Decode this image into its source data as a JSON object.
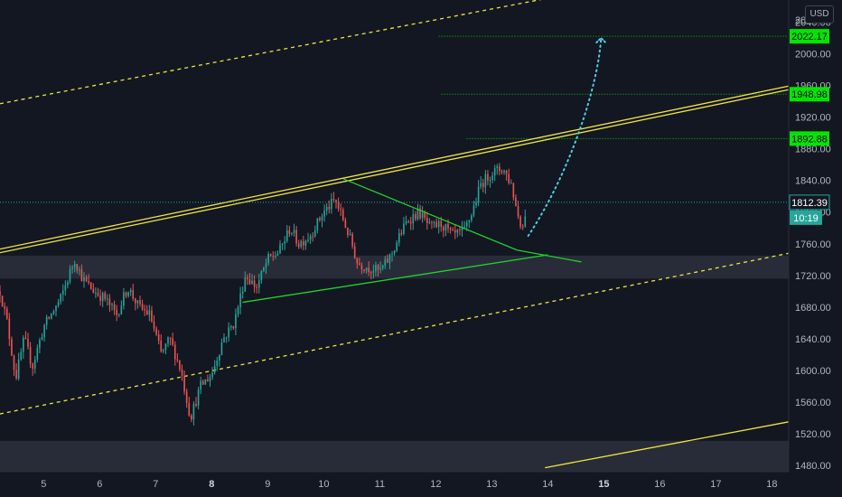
{
  "currency_label": "USD",
  "colors": {
    "background": "#131722",
    "up_candle": "#26a69a",
    "down_candle": "#ef5350",
    "channel_yellow": "#f0e442",
    "triangle_green": "#22d12e",
    "level_green": "#00e600",
    "projection_cyan": "#4dd0e1",
    "zone_gray": "#3a3e4a",
    "current_price_teal": "#26a69a"
  },
  "chart_data": {
    "type": "candlestick",
    "ylim": [
      1472,
      2068
    ],
    "y_ticks": [
      2040,
      2000,
      1960,
      1920,
      1880,
      1840,
      1800,
      1760,
      1720,
      1680,
      1640,
      1600,
      1560,
      1520,
      1480
    ],
    "y_tick_labels": [
      "2040.00",
      "2000.00",
      "1960.00",
      "1920.00",
      "1880.00",
      "1840.00",
      "1800.00",
      "1760.00",
      "1720.00",
      "1680.00",
      "1640.00",
      "1600.00",
      "1560.00",
      "1520.00",
      "1480.00"
    ],
    "y_top_partial_label": "20",
    "xlim": [
      4.22,
      18.3
    ],
    "x_ticks": [
      5,
      6,
      7,
      8,
      9,
      10,
      11,
      12,
      13,
      14,
      15,
      16,
      17,
      18
    ],
    "x_tick_labels": [
      "5",
      "6",
      "7",
      "8",
      "9",
      "10",
      "11",
      "12",
      "13",
      "14",
      "15",
      "16",
      "17",
      "18"
    ],
    "x_bold_ticks": [
      "8",
      "15"
    ],
    "price_path": [
      [
        4.22,
        1700
      ],
      [
        4.35,
        1660
      ],
      [
        4.5,
        1590
      ],
      [
        4.65,
        1640
      ],
      [
        4.8,
        1605
      ],
      [
        5.0,
        1655
      ],
      [
        5.3,
        1690
      ],
      [
        5.55,
        1740
      ],
      [
        5.7,
        1715
      ],
      [
        5.9,
        1700
      ],
      [
        6.1,
        1690
      ],
      [
        6.3,
        1670
      ],
      [
        6.5,
        1705
      ],
      [
        6.7,
        1680
      ],
      [
        6.9,
        1670
      ],
      [
        7.1,
        1620
      ],
      [
        7.25,
        1640
      ],
      [
        7.45,
        1600
      ],
      [
        7.62,
        1540
      ],
      [
        7.8,
        1580
      ],
      [
        8.0,
        1595
      ],
      [
        8.2,
        1640
      ],
      [
        8.4,
        1660
      ],
      [
        8.6,
        1720
      ],
      [
        8.8,
        1705
      ],
      [
        9.0,
        1740
      ],
      [
        9.2,
        1750
      ],
      [
        9.4,
        1780
      ],
      [
        9.55,
        1760
      ],
      [
        9.75,
        1770
      ],
      [
        10.0,
        1800
      ],
      [
        10.2,
        1815
      ],
      [
        10.35,
        1790
      ],
      [
        10.5,
        1760
      ],
      [
        10.6,
        1735
      ],
      [
        10.8,
        1730
      ],
      [
        11.0,
        1725
      ],
      [
        11.2,
        1745
      ],
      [
        11.35,
        1770
      ],
      [
        11.5,
        1790
      ],
      [
        11.7,
        1800
      ],
      [
        11.9,
        1780
      ],
      [
        12.1,
        1785
      ],
      [
        12.3,
        1770
      ],
      [
        12.5,
        1775
      ],
      [
        12.65,
        1800
      ],
      [
        12.8,
        1835
      ],
      [
        13.0,
        1850
      ],
      [
        13.2,
        1855
      ],
      [
        13.35,
        1835
      ],
      [
        13.45,
        1800
      ],
      [
        13.55,
        1780
      ],
      [
        13.62,
        1810
      ]
    ],
    "triangle": {
      "upper": [
        [
          10.35,
          1842
        ],
        [
          13.45,
          1752
        ]
      ],
      "lower": [
        [
          8.55,
          1686
        ],
        [
          14.0,
          1746
        ]
      ],
      "right_end": [
        [
          13.45,
          1752
        ],
        [
          14.6,
          1737
        ]
      ]
    },
    "channel_upper_double": [
      [
        4.22,
        1751
      ],
      [
        18.3,
        1957
      ]
    ],
    "channel_top_dashed": [
      [
        4.22,
        1937
      ],
      [
        14.2,
        2073
      ]
    ],
    "channel_mid_dashed": [
      [
        4.22,
        1545
      ],
      [
        18.3,
        1748
      ]
    ],
    "channel_bottom_solid": [
      [
        13.95,
        1477
      ],
      [
        18.3,
        1535
      ]
    ],
    "zones": [
      {
        "from": 1716,
        "to": 1745
      },
      {
        "from": 1472,
        "to": 1511
      }
    ],
    "levels": [
      {
        "value": 2022.17,
        "label": "2022.17",
        "x_start": 12.05
      },
      {
        "value": 1948.98,
        "label": "1948.98",
        "x_start": 12.1
      },
      {
        "value": 1892.88,
        "label": "1892.88",
        "x_start": 12.55
      }
    ],
    "current_price": {
      "value": 1812.39,
      "label": "1812.39"
    },
    "countdown": {
      "label": "10:19"
    },
    "projection": [
      [
        13.65,
        1770
      ],
      [
        14.4,
        1850
      ],
      [
        14.9,
        1960
      ],
      [
        14.95,
        2020
      ]
    ]
  }
}
